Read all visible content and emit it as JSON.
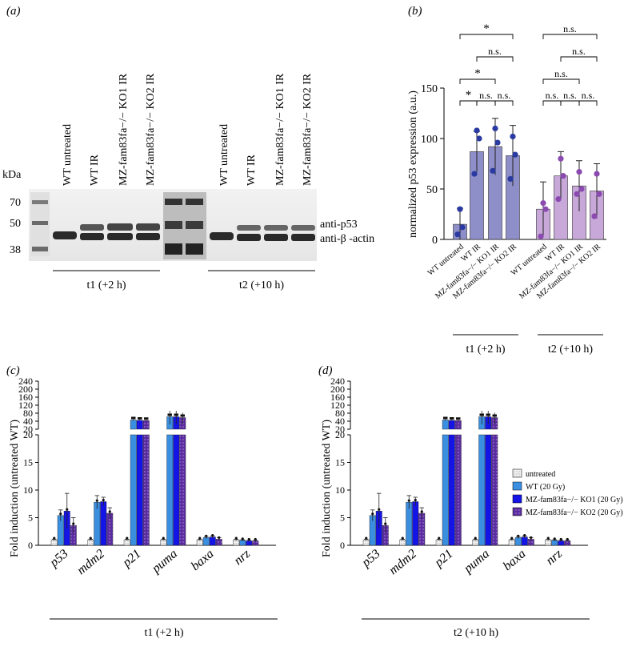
{
  "panel_a": {
    "tag": "(a)",
    "kda_label": "kDa",
    "mw_markers": [
      "70",
      "50",
      "38"
    ],
    "lane_labels_t1": [
      "WT untreated",
      "WT IR",
      "MZ-fam83fa−/− KO1 IR",
      "MZ-fam83fa−/− KO2 IR"
    ],
    "lane_labels_t2": [
      "WT untreated",
      "WT IR",
      "MZ-fam83fa−/− KO1 IR",
      "MZ-fam83fa−/− KO2 IR"
    ],
    "band_p53": "anti-p53",
    "band_actin": "anti-β -actin",
    "time_t1": "t1 (+2 h)",
    "time_t2": "t2 (+10 h)"
  },
  "panel_b": {
    "tag": "(b)",
    "sig": {
      "star": "*",
      "ns": "n.s."
    },
    "group_t1": "t1 (+2 h)",
    "group_t2": "t2 (+10 h)"
  },
  "panel_c": {
    "tag": "(c)",
    "group_label": "t1 (+2 h)"
  },
  "panel_d": {
    "tag": "(d)",
    "group_label": "t2 (+10 h)"
  },
  "legend": [
    "untreated",
    "WT (20 Gy)",
    "MZ-fam83fa−/− KO1 (20 Gy)",
    "MZ-fam83fa−/− KO2 (20 Gy)"
  ],
  "colors": {
    "untreated": "#e8e8e8",
    "wt": "#3b8fe0",
    "ko1": "#1414e6",
    "ko2": "#5a2ca0",
    "b_t1": "#8e8ec8",
    "b_t2": "#c8a8d8",
    "b_dot_t1": "#2a3aa0",
    "b_dot_t2": "#8a4ab0"
  },
  "chart_data": [
    {
      "type": "bar",
      "panel": "(b)",
      "ylabel": "normalized p53 expression (a.u.)",
      "ylim": [
        0,
        150
      ],
      "yticks": [
        0,
        50,
        100,
        150
      ],
      "categories": [
        "WT untreated",
        "WT IR",
        "MZ-fam83fa−/− KO1 IR",
        "MZ-fam83fa−/− KO2 IR",
        "WT untreated",
        "WT IR",
        "MZ-fam83fa−/− KO1 IR",
        "MZ-fam83fa−/− KO2 IR"
      ],
      "values": [
        15,
        87,
        92,
        83,
        30,
        63,
        53,
        48
      ],
      "errors": [
        16,
        20,
        28,
        30,
        27,
        24,
        25,
        27
      ],
      "points": [
        [
          5,
          12,
          30
        ],
        [
          65,
          100,
          108
        ],
        [
          68,
          96,
          110
        ],
        [
          60,
          84,
          102
        ],
        [
          3,
          30,
          36
        ],
        [
          40,
          63,
          80
        ],
        [
          45,
          50,
          67
        ],
        [
          23,
          45,
          65
        ]
      ]
    },
    {
      "type": "bar",
      "panel": "(c)",
      "ylabel": "Fold induction (untreated WT)",
      "group_label": "t1 (+2 h)",
      "categories": [
        "p53",
        "mdm2",
        "p21",
        "puma",
        "baxa",
        "nrz"
      ],
      "series": [
        {
          "name": "untreated",
          "values": [
            1,
            1,
            1,
            1,
            1,
            1
          ],
          "errors": [
            0.1,
            0.1,
            0.1,
            0.1,
            0.1,
            0.1
          ]
        },
        {
          "name": "WT (20 Gy)",
          "values": [
            5.4,
            7.8,
            46,
            62,
            1.4,
            0.9
          ],
          "errors": [
            1.0,
            1.2,
            3,
            30,
            0.2,
            0.1
          ]
        },
        {
          "name": "MZ-fam83fa−/− KO1 (20 Gy)",
          "values": [
            6.2,
            7.9,
            44,
            62,
            1.5,
            0.8
          ],
          "errors": [
            3.2,
            0.8,
            3,
            30,
            0.2,
            0.1
          ]
        },
        {
          "name": "MZ-fam83fa−/− KO2 (20 Gy)",
          "values": [
            3.6,
            5.8,
            43,
            58,
            1.1,
            0.8
          ],
          "errors": [
            1.4,
            1.0,
            3,
            25,
            0.3,
            0.1
          ]
        }
      ],
      "y_axis_lower": [
        0,
        20
      ],
      "y_axis_lower_ticks": [
        0,
        5,
        10,
        15,
        20
      ],
      "y_axis_upper": [
        20,
        240
      ],
      "y_axis_upper_ticks": [
        20,
        40,
        80,
        120,
        160,
        200,
        240
      ]
    },
    {
      "type": "bar",
      "panel": "(d)",
      "ylabel": "Fold induction (untreated WT)",
      "group_label": "t2 (+10 h)",
      "categories": [
        "p53",
        "mdm2",
        "p21",
        "puma",
        "baxa",
        "nrz"
      ],
      "series": [
        {
          "name": "untreated",
          "values": [
            1,
            1,
            1,
            1,
            1,
            1
          ],
          "errors": [
            0.1,
            0.1,
            0.1,
            0.1,
            0.1,
            0.1
          ]
        },
        {
          "name": "WT (20 Gy)",
          "values": [
            5.4,
            7.8,
            46,
            62,
            1.4,
            0.9
          ],
          "errors": [
            1.0,
            1.2,
            3,
            30,
            0.2,
            0.1
          ]
        },
        {
          "name": "MZ-fam83fa−/− KO1 (20 Gy)",
          "values": [
            6.2,
            7.9,
            44,
            62,
            1.5,
            0.8
          ],
          "errors": [
            3.2,
            0.8,
            3,
            30,
            0.2,
            0.1
          ]
        },
        {
          "name": "MZ-fam83fa−/− KO2 (20 Gy)",
          "values": [
            3.6,
            5.8,
            43,
            58,
            1.1,
            0.8
          ],
          "errors": [
            1.4,
            1.0,
            3,
            25,
            0.3,
            0.1
          ]
        }
      ],
      "y_axis_lower": [
        0,
        20
      ],
      "y_axis_lower_ticks": [
        0,
        5,
        10,
        15,
        20
      ],
      "y_axis_upper": [
        20,
        240
      ],
      "y_axis_upper_ticks": [
        20,
        40,
        80,
        120,
        160,
        200,
        240
      ]
    }
  ]
}
